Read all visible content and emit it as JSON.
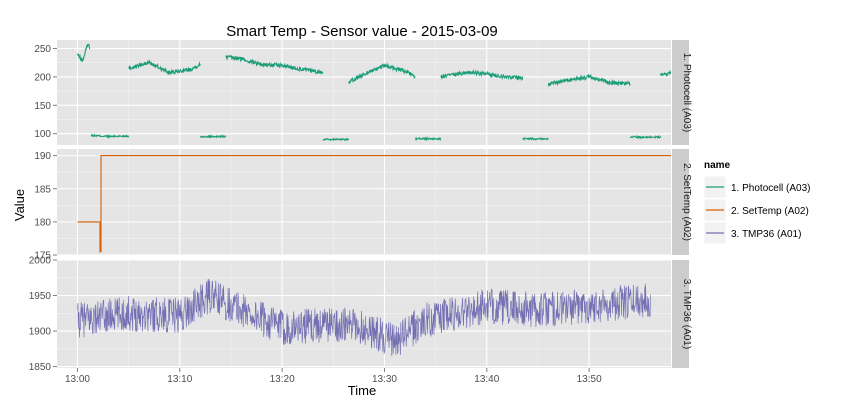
{
  "chart_data": {
    "type": "line",
    "title": "Smart Temp - Sensor value - 2015-03-09",
    "xlabel": "Time",
    "ylabel": "Value",
    "x_ticks": [
      "13:00",
      "13:10",
      "13:20",
      "13:30",
      "13:40",
      "13:50"
    ],
    "xlim": [
      "12:58",
      "13:58"
    ],
    "legend": {
      "title": "name",
      "placement": "right",
      "entries": [
        "1. Photocell (A03)",
        "2. SetTemp (A02)",
        "3. TMP36 (A01)"
      ]
    },
    "grid": true,
    "facets": [
      {
        "strip": "1. Photocell (A03)",
        "color": "#1b9e77",
        "ylim": [
          80,
          265
        ],
        "y_ticks": [
          100,
          150,
          200,
          250
        ],
        "series": {
          "name": "1. Photocell (A03)",
          "segments": [
            {
              "x": [
                "13:00",
                "13:00.5",
                "13:01",
                "13:01.2"
              ],
              "y": [
                240,
                228,
                258,
                252
              ]
            },
            {
              "x": [
                "13:01.3",
                "13:03",
                "13:05"
              ],
              "y": [
                97,
                95,
                96
              ]
            },
            {
              "x": [
                "13:05",
                "13:07",
                "13:09",
                "13:11",
                "13:12"
              ],
              "y": [
                215,
                225,
                207,
                213,
                222
              ]
            },
            {
              "x": [
                "13:12",
                "13:14.5"
              ],
              "y": [
                95,
                95
              ]
            },
            {
              "x": [
                "13:14.5",
                "13:16",
                "13:18",
                "13:20",
                "13:22",
                "13:24"
              ],
              "y": [
                235,
                232,
                222,
                220,
                213,
                208
              ]
            },
            {
              "x": [
                "13:24",
                "13:26.5"
              ],
              "y": [
                90,
                90
              ]
            },
            {
              "x": [
                "13:26.5",
                "13:28",
                "13:30",
                "13:32",
                "13:33"
              ],
              "y": [
                190,
                205,
                220,
                210,
                200
              ]
            },
            {
              "x": [
                "13:33",
                "13:35.5"
              ],
              "y": [
                91,
                91
              ]
            },
            {
              "x": [
                "13:35.5",
                "13:38",
                "13:40",
                "13:42",
                "13:43.5"
              ],
              "y": [
                200,
                208,
                205,
                200,
                198
              ]
            },
            {
              "x": [
                "13:43.5",
                "13:46"
              ],
              "y": [
                91,
                91
              ]
            },
            {
              "x": [
                "13:46",
                "13:48",
                "13:50",
                "13:52",
                "13:54"
              ],
              "y": [
                187,
                195,
                200,
                190,
                188
              ]
            },
            {
              "x": [
                "13:54",
                "13:57"
              ],
              "y": [
                94,
                94
              ]
            },
            {
              "x": [
                "13:57",
                "13:59"
              ],
              "y": [
                205,
                207
              ]
            }
          ]
        }
      },
      {
        "strip": "2. SetTemp (A02)",
        "color": "#d95f02",
        "ylim": [
          175,
          191
        ],
        "y_ticks": [
          175,
          180,
          185,
          190
        ],
        "series": {
          "name": "2. SetTemp (A02)",
          "segments": [
            {
              "x": [
                "13:00",
                "13:02.2",
                "13:02.2",
                "13:02.3",
                "13:02.3",
                "14:00"
              ],
              "y": [
                180,
                180,
                175.5,
                175.5,
                190,
                190
              ]
            }
          ]
        }
      },
      {
        "strip": "3. TMP36 (A01)",
        "color": "#7570b3",
        "ylim": [
          1848,
          2000
        ],
        "y_ticks": [
          1850,
          1900,
          1950,
          2000
        ],
        "series": {
          "name": "3. TMP36 (A01)",
          "trend": {
            "x": [
              "13:00",
              "13:05",
              "13:10",
              "13:13",
              "13:16",
              "13:20",
              "13:25",
              "13:28",
              "13:31",
              "13:34",
              "13:40",
              "13:45",
              "13:50",
              "13:56"
            ],
            "y": [
              1915,
              1925,
              1922,
              1950,
              1930,
              1905,
              1910,
              1905,
              1885,
              1915,
              1935,
              1930,
              1935,
              1945
            ]
          },
          "noise_amplitude": 25
        }
      }
    ]
  }
}
